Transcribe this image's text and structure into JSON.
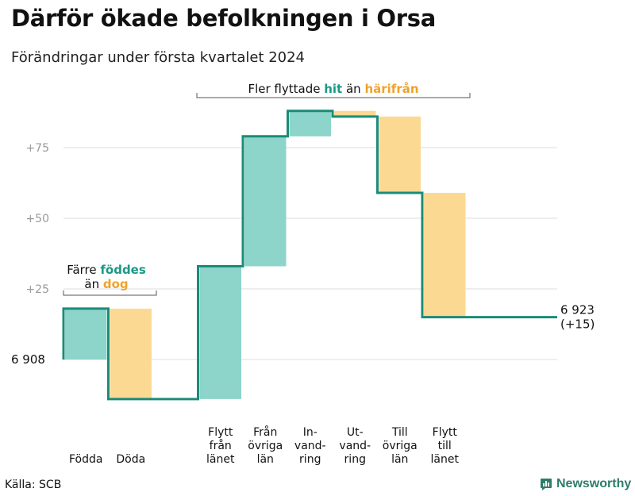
{
  "title": "Därför ökade befolkningen i Orsa",
  "subtitle": "Förändringar under första kvartalet 2024",
  "source": "Källa: SCB",
  "brand": "Newsworthy",
  "colors": {
    "increase": "#8dd4ca",
    "decrease": "#fcd993",
    "line": "#1a8c78",
    "highlight_green": "#1a9985",
    "highlight_orange": "#f0a229"
  },
  "chart_data": {
    "type": "waterfall",
    "start_label": "6 908",
    "end_label": "6 923",
    "end_change_label": "(+15)",
    "yticks": [
      {
        "value": 25,
        "label": "+25"
      },
      {
        "value": 50,
        "label": "+50"
      },
      {
        "value": 75,
        "label": "+75"
      }
    ],
    "ylim": [
      -20,
      92
    ],
    "steps": [
      {
        "label_lines": [
          "Födda"
        ],
        "change": 18
      },
      {
        "label_lines": [
          "Döda"
        ],
        "change": -32
      },
      {
        "label_lines": [],
        "change": 0
      },
      {
        "label_lines": [
          "Flytt",
          "från",
          "länet"
        ],
        "change": 47
      },
      {
        "label_lines": [
          "Från",
          "övriga",
          "län"
        ],
        "change": 46
      },
      {
        "label_lines": [
          "In-",
          "vand-",
          "ring"
        ],
        "change": 9
      },
      {
        "label_lines": [
          "Ut-",
          "vand-",
          "ring"
        ],
        "change": -2
      },
      {
        "label_lines": [
          "Till",
          "övriga",
          "län"
        ],
        "change": -27
      },
      {
        "label_lines": [
          "Flytt",
          "till",
          "länet"
        ],
        "change": -44
      },
      {
        "label_lines": [],
        "change": 0
      }
    ],
    "annotations": [
      {
        "parts": [
          {
            "text": "Fler flyttade ",
            "style": "plain"
          },
          {
            "text": "hit",
            "style": "green"
          },
          {
            "text": " än ",
            "style": "plain"
          },
          {
            "text": "härifrån",
            "style": "orange"
          }
        ]
      },
      {
        "parts": [
          {
            "text": "Färre ",
            "style": "plain"
          },
          {
            "text": "föddes",
            "style": "green"
          }
        ],
        "line2": [
          {
            "text": "än ",
            "style": "plain"
          },
          {
            "text": "dog",
            "style": "orange"
          }
        ]
      }
    ]
  }
}
